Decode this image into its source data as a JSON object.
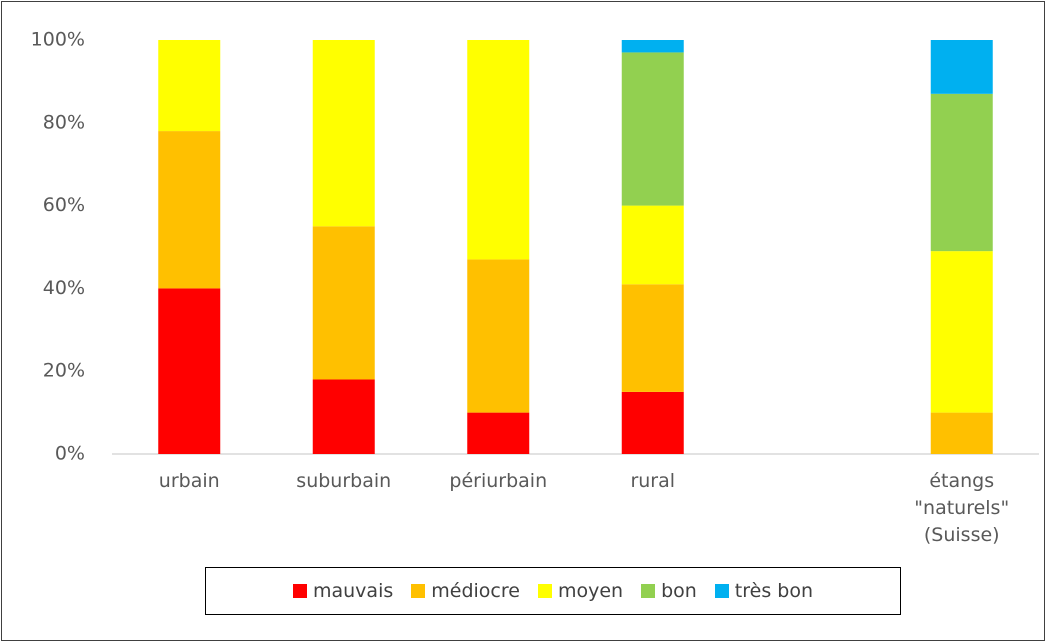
{
  "chart_data": {
    "type": "stacked_bar",
    "categories": [
      "urbain",
      "suburbain",
      "périurbain",
      "rural",
      null,
      "étangs \"naturels\" (Suisse)"
    ],
    "series": [
      {
        "name": "mauvais",
        "color": "#ff0000",
        "values": [
          40,
          18,
          10,
          15,
          null,
          0
        ]
      },
      {
        "name": "médiocre",
        "color": "#ffc000",
        "values": [
          38,
          37,
          37,
          26,
          null,
          10
        ]
      },
      {
        "name": "moyen",
        "color": "#ffff00",
        "values": [
          22,
          45,
          53,
          19,
          null,
          39
        ]
      },
      {
        "name": "bon",
        "color": "#92d050",
        "values": [
          0,
          0,
          0,
          37,
          null,
          38
        ]
      },
      {
        "name": "très bon",
        "color": "#00b0f0",
        "values": [
          0,
          0,
          0,
          3,
          null,
          13
        ]
      }
    ],
    "ylim": [
      0,
      100
    ],
    "yticks": [
      {
        "value": 0,
        "label": "0%"
      },
      {
        "value": 20,
        "label": "20%"
      },
      {
        "value": 40,
        "label": "40%"
      },
      {
        "value": 60,
        "label": "60%"
      },
      {
        "value": 80,
        "label": "80%"
      },
      {
        "value": 100,
        "label": "100%"
      }
    ],
    "grid": false,
    "legend": "bottom"
  }
}
